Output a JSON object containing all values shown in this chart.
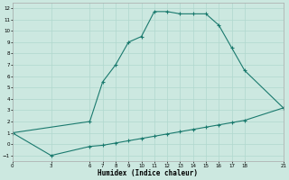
{
  "xlabel": "Humidex (Indice chaleur)",
  "bg_color": "#cce8e0",
  "grid_color": "#b0d8ce",
  "line_color": "#1a7a6e",
  "upper_x": [
    0,
    6,
    7,
    8,
    9,
    10,
    11,
    12,
    13,
    14,
    15,
    16,
    17,
    18,
    21
  ],
  "upper_y": [
    1,
    2,
    5.5,
    7,
    9,
    9.5,
    11.7,
    11.7,
    11.5,
    11.5,
    11.5,
    10.5,
    8.5,
    6.5,
    3.2
  ],
  "lower_x": [
    0,
    3,
    6,
    7,
    8,
    9,
    10,
    11,
    12,
    13,
    14,
    15,
    16,
    17,
    18,
    21
  ],
  "lower_y": [
    1,
    -1,
    -0.2,
    -0.1,
    0.1,
    0.3,
    0.5,
    0.7,
    0.9,
    1.1,
    1.3,
    1.5,
    1.7,
    1.9,
    2.1,
    3.2
  ],
  "xlim": [
    0,
    21
  ],
  "ylim": [
    -1.5,
    12.5
  ],
  "xticks": [
    0,
    3,
    6,
    7,
    8,
    9,
    10,
    11,
    12,
    13,
    14,
    15,
    16,
    17,
    18,
    21
  ],
  "yticks": [
    -1,
    0,
    1,
    2,
    3,
    4,
    5,
    6,
    7,
    8,
    9,
    10,
    11,
    12
  ]
}
